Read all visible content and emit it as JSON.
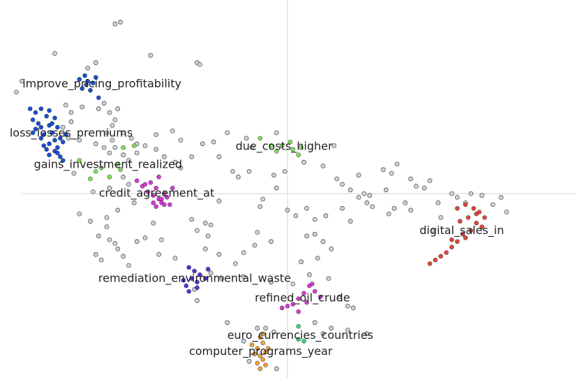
{
  "chart_data": {
    "type": "scatter",
    "title": "",
    "xlabel": "",
    "ylabel": "",
    "grid": false,
    "legend": "none",
    "axes": "crosshair",
    "background_points_color": "#d0d4d6",
    "clusters": [
      {
        "label": "improve_pricing_profitability",
        "color": "#1a4fd6",
        "points": [
          [
            -7.6,
            6.2
          ],
          [
            -7.4,
            6.4
          ],
          [
            -7.3,
            6.1
          ],
          [
            -7.1,
            6.0
          ],
          [
            -7.5,
            5.7
          ],
          [
            -7.2,
            5.6
          ],
          [
            -6.9,
            5.2
          ],
          [
            -7.0,
            6.3
          ],
          [
            -7.35,
            5.9
          ]
        ]
      },
      {
        "label": "loss_losses_premiums",
        "color": "#1a4fd6",
        "points": [
          [
            -9.4,
            4.6
          ],
          [
            -9.2,
            4.4
          ],
          [
            -9.0,
            4.6
          ],
          [
            -8.8,
            4.2
          ],
          [
            -9.3,
            4.0
          ],
          [
            -8.7,
            4.5
          ],
          [
            -8.5,
            4.1
          ],
          [
            -9.1,
            3.8
          ],
          [
            -9.0,
            3.6
          ],
          [
            -8.7,
            3.7
          ],
          [
            -8.4,
            3.6
          ],
          [
            -8.6,
            3.3
          ],
          [
            -8.9,
            3.2
          ],
          [
            -9.3,
            3.3
          ],
          [
            -8.5,
            2.9
          ],
          [
            -8.7,
            2.7
          ],
          [
            -8.9,
            2.6
          ],
          [
            -8.3,
            3.0
          ],
          [
            -8.2,
            2.8
          ],
          [
            -8.4,
            2.5
          ],
          [
            -8.5,
            2.3
          ],
          [
            -8.7,
            2.1
          ],
          [
            -8.3,
            2.0
          ],
          [
            -8.1,
            3.2
          ],
          [
            -8.6,
            3.8
          ],
          [
            -9.0,
            3.0
          ],
          [
            -9.2,
            3.5
          ],
          [
            -8.4,
            2.2
          ],
          [
            -8.2,
            1.8
          ],
          [
            -8.8,
            2.4
          ]
        ]
      },
      {
        "label": "gains_investment_realized",
        "color": "#7fe05a",
        "points": [
          [
            -7.6,
            1.8
          ],
          [
            -7.0,
            1.2
          ],
          [
            -6.2,
            1.6
          ],
          [
            -6.0,
            2.5
          ],
          [
            -5.6,
            2.6
          ],
          [
            -7.2,
            0.8
          ],
          [
            -6.5,
            0.9
          ],
          [
            -6.1,
            1.3
          ],
          [
            -6.8,
            1.4
          ]
        ]
      },
      {
        "label": "credit_agreement_at",
        "color": "#d63ad6",
        "points": [
          [
            -5.5,
            0.7
          ],
          [
            -5.3,
            0.4
          ],
          [
            -5.1,
            0.1
          ],
          [
            -4.9,
            -0.1
          ],
          [
            -4.7,
            -0.3
          ],
          [
            -4.5,
            0.0
          ],
          [
            -4.8,
            0.3
          ],
          [
            -5.0,
            0.6
          ],
          [
            -4.6,
            -0.5
          ],
          [
            -4.4,
            -0.2
          ],
          [
            -4.3,
            -0.6
          ],
          [
            -4.8,
            -0.7
          ],
          [
            -4.9,
            -0.5
          ],
          [
            -4.2,
            0.3
          ],
          [
            -4.7,
            0.9
          ],
          [
            -5.2,
            0.5
          ],
          [
            -4.6,
            -0.3
          ],
          [
            -4.5,
            -0.6
          ]
        ]
      },
      {
        "label": "due_costs_higher",
        "color": "#7fe05a",
        "points": [
          [
            -1.0,
            3.0
          ],
          [
            -0.6,
            2.6
          ],
          [
            -0.4,
            2.3
          ],
          [
            -0.2,
            2.6
          ],
          [
            0.2,
            2.4
          ],
          [
            0.4,
            2.1
          ],
          [
            0.1,
            2.8
          ],
          [
            0.5,
            2.5
          ]
        ]
      },
      {
        "label": "digital_sales_in",
        "color": "#e0463a",
        "points": [
          [
            6.2,
            -0.8
          ],
          [
            6.5,
            -0.6
          ],
          [
            6.8,
            -0.8
          ],
          [
            7.0,
            -1.0
          ],
          [
            6.6,
            -1.3
          ],
          [
            6.3,
            -1.5
          ],
          [
            6.9,
            -1.6
          ],
          [
            7.1,
            -1.8
          ],
          [
            6.7,
            -2.0
          ],
          [
            6.4,
            -2.2
          ],
          [
            6.2,
            -2.6
          ],
          [
            6.0,
            -2.9
          ],
          [
            5.8,
            -3.2
          ],
          [
            5.6,
            -3.4
          ],
          [
            5.4,
            -3.6
          ],
          [
            5.2,
            -3.8
          ],
          [
            6.5,
            -2.4
          ],
          [
            6.0,
            -2.5
          ],
          [
            7.2,
            -1.3
          ],
          [
            6.9,
            -1.1
          ]
        ]
      },
      {
        "label": "remediation_environmental_waste",
        "color": "#5a2fd6",
        "points": [
          [
            -3.6,
            -4.0
          ],
          [
            -3.4,
            -4.2
          ],
          [
            -3.2,
            -4.4
          ],
          [
            -3.5,
            -4.6
          ],
          [
            -3.3,
            -4.8
          ],
          [
            -3.7,
            -5.0
          ],
          [
            -3.6,
            -5.3
          ],
          [
            -3.3,
            -5.1
          ],
          [
            -2.9,
            -4.1
          ],
          [
            -3.0,
            -4.6
          ],
          [
            -3.8,
            -4.7
          ]
        ]
      },
      {
        "label": "refined_oil_crude",
        "color": "#d63ad6",
        "points": [
          [
            0.8,
            -5.0
          ],
          [
            1.0,
            -5.3
          ],
          [
            0.6,
            -5.4
          ],
          [
            0.4,
            -5.7
          ],
          [
            0.2,
            -6.0
          ],
          [
            0.0,
            -6.1
          ],
          [
            -0.2,
            -6.2
          ],
          [
            1.2,
            -5.6
          ],
          [
            0.7,
            -5.9
          ],
          [
            0.4,
            -6.4
          ],
          [
            0.9,
            -4.9
          ]
        ]
      },
      {
        "label": "euro_currencies_countries",
        "color": "#3fd67f",
        "points": [
          [
            0.4,
            -7.2
          ],
          [
            0.4,
            -7.9
          ],
          [
            0.6,
            -8.0
          ]
        ]
      },
      {
        "label": "computer_programs_year",
        "color": "#f0a040",
        "points": [
          [
            -1.0,
            -7.8
          ],
          [
            -0.9,
            -8.1
          ],
          [
            -1.1,
            -8.4
          ],
          [
            -0.8,
            -8.6
          ],
          [
            -1.0,
            -8.8
          ],
          [
            -0.9,
            -9.0
          ],
          [
            -1.2,
            -8.7
          ],
          [
            -0.7,
            -8.4
          ],
          [
            -1.1,
            -9.2
          ],
          [
            -0.8,
            -9.3
          ],
          [
            -1.0,
            -9.5
          ],
          [
            -1.3,
            -8.2
          ],
          [
            -0.9,
            -7.6
          ]
        ]
      }
    ],
    "background_points": [
      [
        -6.3,
        9.2
      ],
      [
        -6.1,
        9.3
      ],
      [
        -8.5,
        7.6
      ],
      [
        -7.0,
        7.1
      ],
      [
        -7.3,
        6.8
      ],
      [
        -5.0,
        7.5
      ],
      [
        -3.3,
        7.1
      ],
      [
        -3.2,
        7.0
      ],
      [
        -9.7,
        6.1
      ],
      [
        -9.9,
        5.5
      ],
      [
        -8.1,
        4.8
      ],
      [
        -7.9,
        4.4
      ],
      [
        -7.5,
        4.7
      ],
      [
        -7.9,
        3.9
      ],
      [
        -8.2,
        3.6
      ],
      [
        -8.0,
        3.0
      ],
      [
        -7.6,
        2.9
      ],
      [
        -6.9,
        4.6
      ],
      [
        -6.7,
        4.9
      ],
      [
        -6.5,
        4.4
      ],
      [
        -6.3,
        4.0
      ],
      [
        -6.2,
        4.6
      ],
      [
        -6.4,
        3.7
      ],
      [
        -6.6,
        3.3
      ],
      [
        -6.0,
        3.3
      ],
      [
        -5.7,
        3.0
      ],
      [
        -5.5,
        2.7
      ],
      [
        -6.4,
        2.9
      ],
      [
        -6.3,
        2.5
      ],
      [
        -6.7,
        2.5
      ],
      [
        -7.0,
        2.7
      ],
      [
        -6.5,
        2.2
      ],
      [
        -6.0,
        2.1
      ],
      [
        -5.8,
        1.8
      ],
      [
        -5.5,
        2.2
      ],
      [
        -5.2,
        2.6
      ],
      [
        -4.8,
        2.4
      ],
      [
        -4.5,
        2.0
      ],
      [
        -4.1,
        1.7
      ],
      [
        -3.9,
        1.4
      ],
      [
        -3.5,
        2.0
      ],
      [
        -3.1,
        2.7
      ],
      [
        -2.7,
        2.8
      ],
      [
        -6.0,
        0.9
      ],
      [
        -5.8,
        0.5
      ],
      [
        -6.5,
        0.3
      ],
      [
        -7.1,
        0.1
      ],
      [
        -7.8,
        1.1
      ],
      [
        -5.6,
        -0.5
      ],
      [
        -6.2,
        -0.9
      ],
      [
        -6.6,
        -1.3
      ],
      [
        -7.6,
        -1.1
      ],
      [
        -7.2,
        -1.5
      ],
      [
        -6.6,
        -1.8
      ],
      [
        -6.9,
        -2.3
      ],
      [
        -6.5,
        -2.5
      ],
      [
        -6.3,
        -2.7
      ],
      [
        -6.2,
        -3.0
      ],
      [
        -6.0,
        -3.4
      ],
      [
        -7.0,
        -3.3
      ],
      [
        -6.8,
        -3.6
      ],
      [
        -5.5,
        -2.6
      ],
      [
        -5.2,
        -2.4
      ],
      [
        -4.9,
        -1.6
      ],
      [
        -4.6,
        -2.5
      ],
      [
        -5.8,
        -3.9
      ],
      [
        -4.7,
        -3.3
      ],
      [
        -4.1,
        -3.5
      ],
      [
        -3.5,
        -1.4
      ],
      [
        -3.0,
        -1.6
      ],
      [
        -2.8,
        -1.7
      ],
      [
        -2.5,
        -0.4
      ],
      [
        -2.0,
        1.2
      ],
      [
        -1.8,
        0.9
      ],
      [
        -1.4,
        1.2
      ],
      [
        -0.5,
        1.0
      ],
      [
        -0.1,
        1.2
      ],
      [
        -0.4,
        0.3
      ],
      [
        0.0,
        -0.9
      ],
      [
        0.3,
        -1.2
      ],
      [
        0.7,
        -0.8
      ],
      [
        1.0,
        -1.4
      ],
      [
        1.4,
        -1.2
      ],
      [
        1.8,
        0.8
      ],
      [
        2.0,
        0.5
      ],
      [
        2.3,
        0.2
      ],
      [
        2.6,
        -0.2
      ],
      [
        2.9,
        -0.5
      ],
      [
        3.0,
        -0.1
      ],
      [
        3.5,
        1.3
      ],
      [
        3.8,
        1.1
      ],
      [
        4.0,
        1.6
      ],
      [
        4.5,
        0.8
      ],
      [
        4.7,
        0.4
      ],
      [
        3.6,
        0.2
      ],
      [
        4.3,
        -0.5
      ],
      [
        3.9,
        -0.8
      ],
      [
        5.2,
        0.7
      ],
      [
        6.0,
        0.0
      ],
      [
        6.2,
        -0.2
      ],
      [
        6.7,
        0.0
      ],
      [
        7.5,
        -0.6
      ],
      [
        7.8,
        -0.2
      ],
      [
        8.0,
        -1.0
      ],
      [
        6.5,
        -0.5
      ],
      [
        5.5,
        -0.5
      ],
      [
        5.6,
        -1.3
      ],
      [
        5.3,
        -2.0
      ],
      [
        2.8,
        0.0
      ],
      [
        2.0,
        -0.8
      ],
      [
        1.0,
        -2.2
      ],
      [
        0.7,
        -2.3
      ],
      [
        1.3,
        -2.6
      ],
      [
        1.6,
        -3.0
      ],
      [
        1.1,
        -3.5
      ],
      [
        0.5,
        -3.7
      ],
      [
        0.8,
        -4.4
      ],
      [
        1.5,
        -4.6
      ],
      [
        -1.2,
        -2.8
      ],
      [
        -0.6,
        -2.6
      ],
      [
        -1.1,
        -2.1
      ],
      [
        -1.6,
        -3.2
      ],
      [
        -1.9,
        -3.8
      ],
      [
        -2.5,
        -3.3
      ],
      [
        -3.0,
        -3.0
      ],
      [
        -2.8,
        -4.3
      ],
      [
        -2.4,
        -4.6
      ],
      [
        -1.6,
        -4.5
      ],
      [
        -0.6,
        -4.8
      ],
      [
        0.2,
        -4.9
      ],
      [
        1.9,
        -5.6
      ],
      [
        2.2,
        -6.1
      ],
      [
        2.4,
        -6.2
      ],
      [
        1.0,
        -7.0
      ],
      [
        1.3,
        -7.6
      ],
      [
        1.6,
        -7.3
      ],
      [
        2.2,
        -7.4
      ],
      [
        2.9,
        -7.6
      ],
      [
        -2.2,
        -7.0
      ],
      [
        -3.3,
        -5.8
      ],
      [
        -3.4,
        -5.2
      ],
      [
        -0.8,
        -7.3
      ],
      [
        -0.5,
        -7.5
      ],
      [
        -1.1,
        -7.3
      ],
      [
        -1.6,
        -8.0
      ],
      [
        -0.4,
        -9.5
      ],
      [
        -1.4,
        -9.1
      ],
      [
        -2.9,
        -2.3
      ],
      [
        -3.3,
        -2.0
      ],
      [
        -0.9,
        -0.3
      ],
      [
        -1.0,
        -0.7
      ],
      [
        1.3,
        1.5
      ],
      [
        0.6,
        1.7
      ],
      [
        -1.3,
        2.5
      ],
      [
        -2.5,
        2.0
      ],
      [
        -4.8,
        3.2
      ],
      [
        -4.2,
        3.4
      ],
      [
        -3.9,
        2.9
      ],
      [
        -1.5,
        3.0
      ],
      [
        1.7,
        2.6
      ],
      [
        2.6,
        1.0
      ],
      [
        5.0,
        0.3
      ],
      [
        4.5,
        -0.9
      ],
      [
        7.1,
        -0.1
      ],
      [
        3.1,
        -0.7
      ],
      [
        2.3,
        -1.5
      ],
      [
        3.7,
        -1.1
      ],
      [
        -2.2,
        3.3
      ],
      [
        -0.4,
        3.3
      ]
    ],
    "xlim": [
      -10.5,
      10.5
    ],
    "ylim": [
      -10.0,
      10.5
    ]
  }
}
